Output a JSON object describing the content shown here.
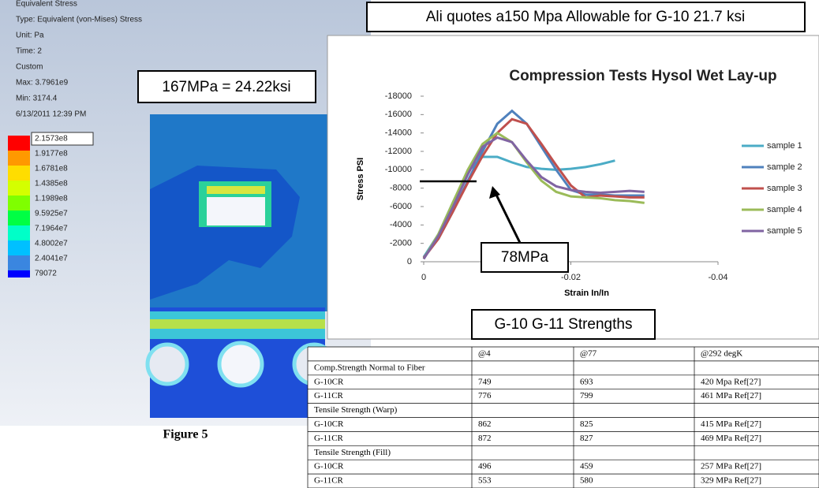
{
  "callouts": {
    "top": "Ali quotes a150 Mpa Allowable for G-10 21.7 ksi",
    "fea": "167MPa = 24.22ksi",
    "table_title": "G-10 G-11 Strengths"
  },
  "fea": {
    "info": [
      "Equivalent Stress",
      "Type: Equivalent (von-Mises) Stress",
      "Unit: Pa",
      "Time: 2",
      "Custom",
      "Max: 3.7961e9",
      "Min: 3174.4",
      "6/13/2011 12:39 PM"
    ],
    "legend": [
      "2.1573e8",
      "1.9177e8",
      "1.6781e8",
      "1.4385e8",
      "1.1989e8",
      "9.5925e7",
      "7.1964e7",
      "4.8002e7",
      "2.4041e7",
      "79072"
    ],
    "caption": "Figure 5"
  },
  "chart_data": {
    "type": "line",
    "title": "Compression Tests Hysol Wet Lay-up",
    "x_label": "Strain In/In",
    "y_label": "Stress PSI",
    "annotation": "78MPa",
    "x": [
      0,
      -0.002,
      -0.004,
      -0.006,
      -0.008,
      -0.01,
      -0.012,
      -0.014,
      -0.016,
      -0.018,
      -0.02,
      -0.022,
      -0.024,
      -0.026,
      -0.028,
      -0.03
    ],
    "xlim": [
      0,
      -0.04
    ],
    "xticks": [
      0,
      -0.02,
      -0.04
    ],
    "ylim": [
      0,
      -18000
    ],
    "yticks": [
      0,
      -2000,
      -4000,
      -6000,
      -8000,
      -10000,
      -12000,
      -14000,
      -16000,
      -18000
    ],
    "legend": "right",
    "series": [
      {
        "name": "sample 1",
        "color": "#4bacc6",
        "values": [
          -500,
          -3000,
          -6500,
          -9800,
          -11400,
          -11400,
          -10800,
          -10300,
          -10100,
          -10000,
          -10100,
          -10300,
          -10600,
          -11000,
          null,
          null
        ]
      },
      {
        "name": "sample 2",
        "color": "#4f81bd",
        "values": [
          -500,
          -2500,
          -5500,
          -8800,
          -12000,
          -15000,
          -16400,
          -15000,
          -12500,
          -10000,
          -7800,
          -7300,
          -7300,
          -7200,
          -7200,
          -7200
        ]
      },
      {
        "name": "sample 3",
        "color": "#c0504d",
        "values": [
          -400,
          -2500,
          -5500,
          -8600,
          -11500,
          -14000,
          -15500,
          -15000,
          -12800,
          -10500,
          -8300,
          -7000,
          -7200,
          -7100,
          -7000,
          -7000
        ]
      },
      {
        "name": "sample 4",
        "color": "#9bbb59",
        "values": [
          -300,
          -3000,
          -6500,
          -10000,
          -12800,
          -14000,
          -13000,
          -10800,
          -8800,
          -7600,
          -7100,
          -7000,
          -6900,
          -6700,
          -6600,
          -6400
        ]
      },
      {
        "name": "sample 5",
        "color": "#8064a2",
        "values": [
          -300,
          -2800,
          -6000,
          -9500,
          -12500,
          -13500,
          -13000,
          -11000,
          -9200,
          -8200,
          -7800,
          -7600,
          -7500,
          -7600,
          -7700,
          -7600
        ]
      }
    ]
  },
  "table": {
    "header": [
      "@4",
      "@77",
      "@292  degK"
    ],
    "rows": [
      [
        "Comp.Strength Normal  to Fiber"
      ],
      [
        "G-10CR",
        "749",
        "693",
        "420  Mpa Ref[27]"
      ],
      [
        "G-11CR",
        "776",
        "799",
        "461  MPa Ref[27]"
      ],
      [
        "Tensile Strength (Warp)"
      ],
      [
        "G-10CR",
        "862",
        "825",
        "415  MPa Ref[27]"
      ],
      [
        "G-11CR",
        "872",
        "827",
        "469  MPa Ref[27]"
      ],
      [
        "Tensile Strength (Fill)"
      ],
      [
        "G-10CR",
        "496",
        "459",
        "257  MPa Ref[27]"
      ],
      [
        "G-11CR",
        "553",
        "580",
        "329  MPa Ref[27]"
      ]
    ]
  }
}
